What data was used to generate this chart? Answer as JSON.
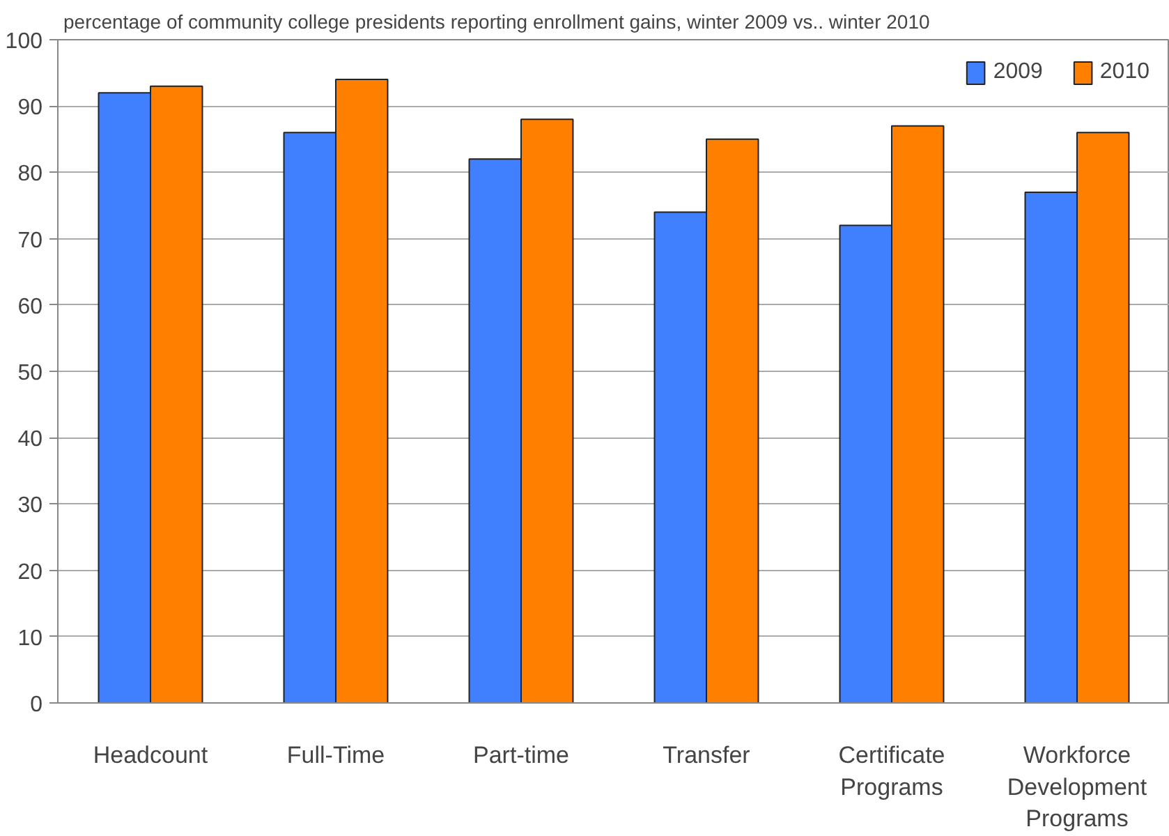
{
  "chart_data": {
    "type": "bar",
    "title": "percentage of community college presidents reporting enrollment gains, winter 2009 vs.. winter 2010",
    "categories": [
      "Headcount",
      "Full-Time",
      "Part-time",
      "Transfer",
      "Certificate\nPrograms",
      "Workforce\nDevelopment\nPrograms"
    ],
    "series": [
      {
        "name": "2009",
        "color": "#4080ff",
        "values": [
          92,
          86,
          82,
          74,
          72,
          77
        ]
      },
      {
        "name": "2010",
        "color": "#ff7f00",
        "values": [
          93,
          94,
          88,
          85,
          87,
          86
        ]
      }
    ],
    "ylim": [
      0,
      100
    ],
    "yticks": [
      0,
      10,
      20,
      30,
      40,
      50,
      60,
      70,
      80,
      90,
      100
    ],
    "grid": "y",
    "legend": "top right"
  }
}
